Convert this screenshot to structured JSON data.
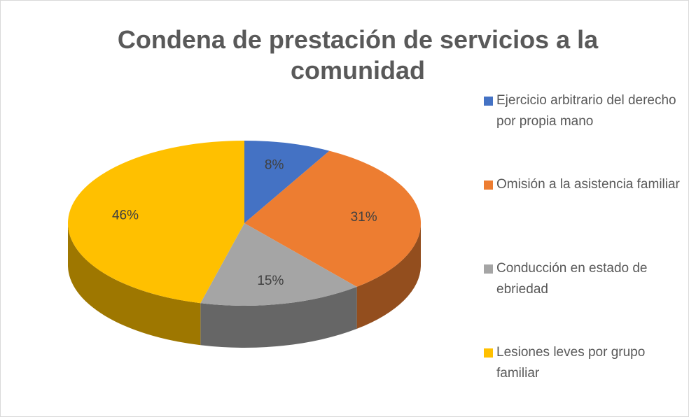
{
  "chart_data": {
    "type": "pie",
    "title": "Condena de prestación de servicios a la comunidad",
    "categories": [
      "Ejercicio arbitrario del derecho por propia mano",
      "Omisión a la asistencia familiar",
      "Conducción en estado de ebriedad",
      "Lesiones leves por grupo familiar"
    ],
    "values": [
      8,
      31,
      15,
      46
    ],
    "value_labels": [
      "8%",
      "31%",
      "15%",
      "46%"
    ],
    "colors": [
      "#4472c4",
      "#ed7d31",
      "#a5a5a5",
      "#ffc000"
    ],
    "legend": "right"
  }
}
